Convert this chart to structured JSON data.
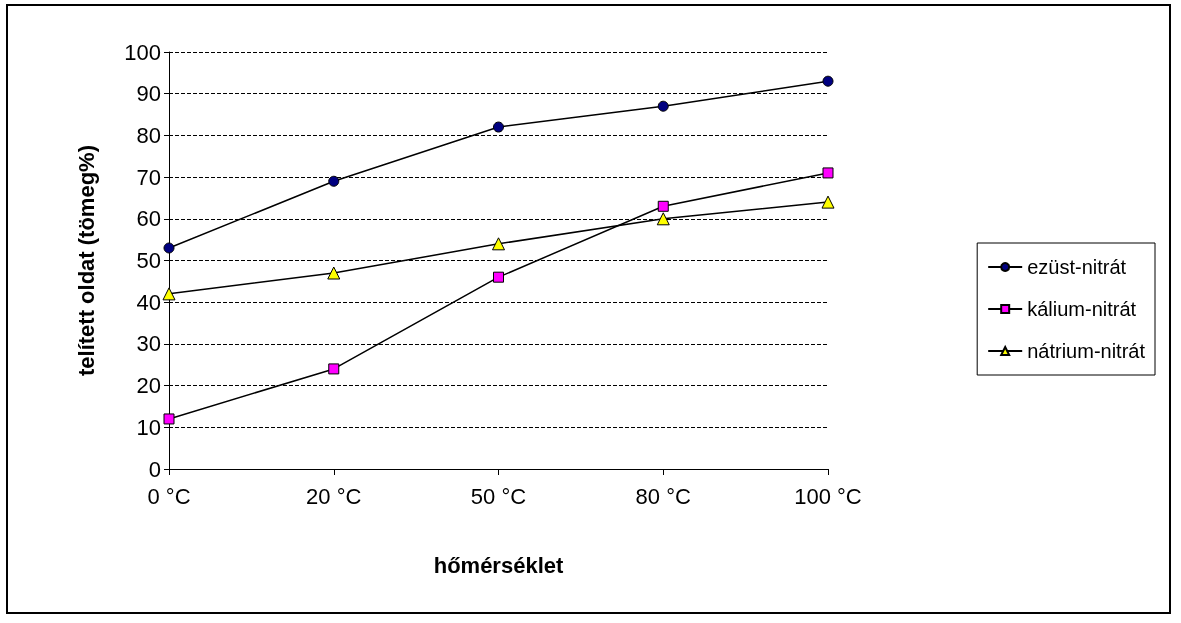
{
  "chart_data": {
    "type": "line",
    "xlabel": "hőmérséklet",
    "ylabel": "telített oldat (tömeg%)",
    "categories": [
      "0 °C",
      "20 °C",
      "50 °C",
      "80 °C",
      "100 °C"
    ],
    "series": [
      {
        "name": "ezüst-nitrát",
        "color": "#000080",
        "marker": "circle",
        "values": [
          53,
          69,
          82,
          87,
          93
        ]
      },
      {
        "name": "kálium-nitrát",
        "color": "#ff00ff",
        "marker": "square",
        "values": [
          12,
          24,
          46,
          63,
          71
        ]
      },
      {
        "name": "nátrium-nitrát",
        "color": "#ffff00",
        "marker": "triangle",
        "values": [
          42,
          47,
          54,
          60,
          64
        ]
      }
    ],
    "ylim": [
      0,
      100
    ],
    "yticks": [
      0,
      10,
      20,
      30,
      40,
      50,
      60,
      70,
      80,
      90,
      100
    ],
    "grid": "y",
    "legend": "right",
    "line_style": "solid"
  }
}
